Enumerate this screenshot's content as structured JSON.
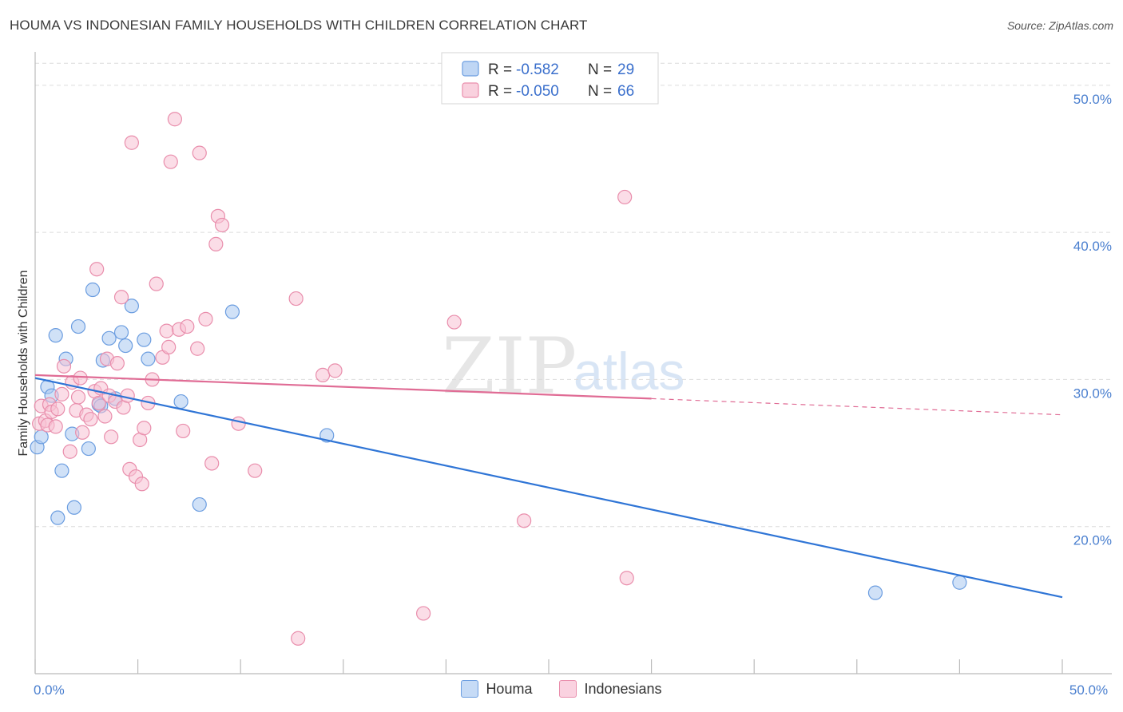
{
  "chart_data": {
    "type": "scatter",
    "title": "HOUMA VS INDONESIAN FAMILY HOUSEHOLDS WITH CHILDREN CORRELATION CHART",
    "source": "Source: ZipAtlas.com",
    "xlabel": "",
    "ylabel": "Family Households with Children",
    "xlim": [
      0,
      50
    ],
    "ylim": [
      10,
      52
    ],
    "x_tick_labels": [
      {
        "value": 0,
        "label": "0.0%"
      },
      {
        "value": 50,
        "label": "50.0%"
      }
    ],
    "y_tick_labels": [
      {
        "value": 20,
        "label": "20.0%"
      },
      {
        "value": 30,
        "label": "30.0%"
      },
      {
        "value": 40,
        "label": "40.0%"
      },
      {
        "value": 50,
        "label": "50.0%"
      }
    ],
    "watermark": {
      "zip": "ZIP",
      "atlas": "atlas"
    },
    "legend": {
      "entries": [
        {
          "r_label": "R =",
          "r_value": "-0.582",
          "n_label": "N =",
          "n_value": "29"
        },
        {
          "r_label": "R =",
          "r_value": "-0.050",
          "n_label": "N =",
          "n_value": "66"
        }
      ]
    },
    "series": [
      {
        "name": "Houma",
        "fill": "#a9c8f0",
        "stroke": "#6b9de0",
        "line_color": "#2f75d6",
        "trend": {
          "x0": 0,
          "y0": 30.1,
          "x1": 50,
          "y1": 15.2
        },
        "points": [
          [
            0.1,
            25.4
          ],
          [
            0.3,
            26.1
          ],
          [
            0.6,
            29.5
          ],
          [
            0.8,
            28.9
          ],
          [
            1.0,
            33.0
          ],
          [
            1.1,
            20.6
          ],
          [
            1.3,
            23.8
          ],
          [
            1.5,
            31.4
          ],
          [
            1.8,
            26.3
          ],
          [
            1.9,
            21.3
          ],
          [
            2.1,
            33.6
          ],
          [
            2.6,
            25.3
          ],
          [
            2.8,
            36.1
          ],
          [
            3.1,
            28.3
          ],
          [
            3.3,
            31.3
          ],
          [
            3.6,
            32.8
          ],
          [
            3.9,
            28.7
          ],
          [
            4.2,
            33.2
          ],
          [
            4.4,
            32.3
          ],
          [
            4.7,
            35.0
          ],
          [
            5.3,
            32.7
          ],
          [
            5.5,
            31.4
          ],
          [
            7.1,
            28.5
          ],
          [
            8.0,
            21.5
          ],
          [
            9.6,
            34.6
          ],
          [
            14.2,
            26.2
          ],
          [
            40.9,
            15.5
          ],
          [
            45.0,
            16.2
          ],
          [
            3.2,
            28.2
          ]
        ]
      },
      {
        "name": "Indonesians",
        "fill": "#f7c1d3",
        "stroke": "#e98eac",
        "line_color": "#e06c95",
        "trend": {
          "x0": 0,
          "y0": 30.3,
          "x1": 30,
          "y1": 28.7
        },
        "trend_dashed": {
          "x0": 30,
          "y0": 28.7,
          "x1": 50,
          "y1": 27.6
        },
        "points": [
          [
            0.2,
            27.0
          ],
          [
            0.3,
            28.2
          ],
          [
            0.5,
            27.2
          ],
          [
            0.6,
            26.9
          ],
          [
            0.7,
            28.3
          ],
          [
            0.8,
            27.8
          ],
          [
            1.0,
            26.8
          ],
          [
            1.1,
            28.0
          ],
          [
            1.3,
            29.0
          ],
          [
            1.4,
            30.9
          ],
          [
            1.7,
            25.1
          ],
          [
            1.8,
            29.8
          ],
          [
            2.0,
            27.9
          ],
          [
            2.1,
            28.8
          ],
          [
            2.2,
            30.1
          ],
          [
            2.3,
            26.4
          ],
          [
            2.5,
            27.6
          ],
          [
            2.7,
            27.3
          ],
          [
            2.9,
            29.2
          ],
          [
            3.0,
            37.5
          ],
          [
            3.1,
            28.4
          ],
          [
            3.2,
            29.4
          ],
          [
            3.4,
            27.5
          ],
          [
            3.5,
            31.4
          ],
          [
            3.6,
            28.9
          ],
          [
            3.7,
            26.1
          ],
          [
            3.9,
            28.5
          ],
          [
            4.0,
            31.1
          ],
          [
            4.2,
            35.6
          ],
          [
            4.3,
            28.1
          ],
          [
            4.5,
            28.9
          ],
          [
            4.6,
            23.9
          ],
          [
            4.7,
            46.1
          ],
          [
            4.9,
            23.4
          ],
          [
            5.1,
            25.9
          ],
          [
            5.2,
            22.9
          ],
          [
            5.3,
            26.7
          ],
          [
            5.5,
            28.4
          ],
          [
            5.7,
            30.0
          ],
          [
            5.9,
            36.5
          ],
          [
            6.2,
            31.5
          ],
          [
            6.4,
            33.3
          ],
          [
            6.5,
            32.2
          ],
          [
            6.6,
            44.8
          ],
          [
            6.8,
            47.7
          ],
          [
            7.0,
            33.4
          ],
          [
            7.2,
            26.5
          ],
          [
            7.4,
            33.6
          ],
          [
            7.9,
            32.1
          ],
          [
            8.0,
            45.4
          ],
          [
            8.3,
            34.1
          ],
          [
            8.6,
            24.3
          ],
          [
            8.8,
            39.2
          ],
          [
            8.9,
            41.1
          ],
          [
            9.1,
            40.5
          ],
          [
            9.9,
            27.0
          ],
          [
            10.7,
            23.8
          ],
          [
            12.7,
            35.5
          ],
          [
            12.8,
            12.4
          ],
          [
            14.0,
            30.3
          ],
          [
            14.6,
            30.6
          ],
          [
            18.9,
            14.1
          ],
          [
            20.4,
            33.9
          ],
          [
            23.8,
            20.4
          ],
          [
            28.8,
            16.5
          ],
          [
            28.7,
            42.4
          ]
        ]
      }
    ]
  },
  "bottom_legend": [
    {
      "label": "Houma",
      "fill": "#c6dbf6",
      "stroke": "#6b9de0"
    },
    {
      "label": "Indonesians",
      "fill": "#fad2e0",
      "stroke": "#e98eac"
    }
  ]
}
